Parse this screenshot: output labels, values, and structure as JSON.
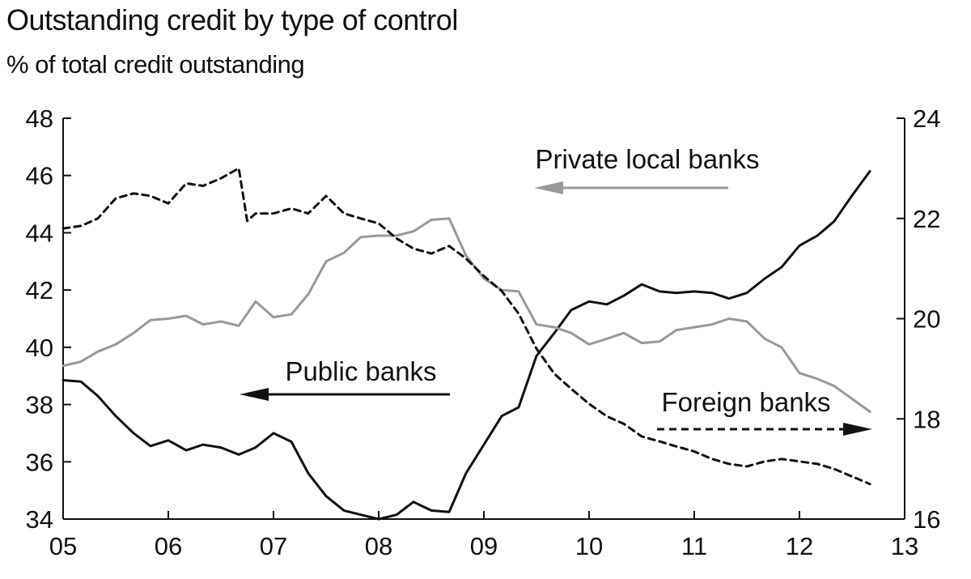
{
  "chart_data": {
    "type": "line",
    "title": "Outstanding credit by type of control",
    "subtitle": "% of total credit outstanding",
    "x_ticks": [
      "05",
      "06",
      "07",
      "08",
      "09",
      "10",
      "11",
      "12",
      "13"
    ],
    "x_range": [
      2005.0,
      2013.0
    ],
    "left_axis": {
      "ticks": [
        34,
        36,
        38,
        40,
        42,
        44,
        46,
        48
      ],
      "range": [
        34,
        48
      ]
    },
    "right_axis": {
      "ticks": [
        16,
        18,
        20,
        22,
        24
      ],
      "range": [
        16,
        24
      ]
    },
    "grid": false,
    "series": [
      {
        "name": "Public banks",
        "axis": "left",
        "style": "solid",
        "color": "#111111",
        "points": [
          [
            2005.0,
            38.85
          ],
          [
            2005.17,
            38.8
          ],
          [
            2005.33,
            38.3
          ],
          [
            2005.5,
            37.6
          ],
          [
            2005.67,
            37.0
          ],
          [
            2005.83,
            36.55
          ],
          [
            2006.0,
            36.75
          ],
          [
            2006.17,
            36.4
          ],
          [
            2006.33,
            36.6
          ],
          [
            2006.5,
            36.5
          ],
          [
            2006.67,
            36.25
          ],
          [
            2006.83,
            36.5
          ],
          [
            2007.0,
            37.0
          ],
          [
            2007.17,
            36.7
          ],
          [
            2007.33,
            35.6
          ],
          [
            2007.5,
            34.8
          ],
          [
            2007.67,
            34.3
          ],
          [
            2007.83,
            34.15
          ],
          [
            2008.0,
            34.0
          ],
          [
            2008.17,
            34.15
          ],
          [
            2008.33,
            34.6
          ],
          [
            2008.5,
            34.3
          ],
          [
            2008.67,
            34.25
          ],
          [
            2008.83,
            35.6
          ],
          [
            2009.0,
            36.6
          ],
          [
            2009.17,
            37.6
          ],
          [
            2009.33,
            37.9
          ],
          [
            2009.5,
            39.7
          ],
          [
            2009.67,
            40.5
          ],
          [
            2009.83,
            41.3
          ],
          [
            2010.0,
            41.6
          ],
          [
            2010.17,
            41.5
          ],
          [
            2010.33,
            41.8
          ],
          [
            2010.5,
            42.2
          ],
          [
            2010.67,
            41.95
          ],
          [
            2010.83,
            41.9
          ],
          [
            2011.0,
            41.95
          ],
          [
            2011.17,
            41.9
          ],
          [
            2011.33,
            41.7
          ],
          [
            2011.5,
            41.9
          ],
          [
            2011.67,
            42.4
          ],
          [
            2011.83,
            42.8
          ],
          [
            2012.0,
            43.55
          ],
          [
            2012.17,
            43.9
          ],
          [
            2012.33,
            44.4
          ],
          [
            2012.5,
            45.3
          ],
          [
            2012.67,
            46.15
          ]
        ]
      },
      {
        "name": "Private local banks",
        "axis": "left",
        "style": "solid",
        "color": "#999999",
        "points": [
          [
            2005.0,
            39.35
          ],
          [
            2005.17,
            39.5
          ],
          [
            2005.33,
            39.85
          ],
          [
            2005.5,
            40.1
          ],
          [
            2005.67,
            40.5
          ],
          [
            2005.83,
            40.95
          ],
          [
            2006.0,
            41.0
          ],
          [
            2006.17,
            41.1
          ],
          [
            2006.33,
            40.8
          ],
          [
            2006.5,
            40.9
          ],
          [
            2006.67,
            40.75
          ],
          [
            2006.83,
            41.6
          ],
          [
            2007.0,
            41.05
          ],
          [
            2007.17,
            41.15
          ],
          [
            2007.33,
            41.85
          ],
          [
            2007.5,
            43.0
          ],
          [
            2007.67,
            43.3
          ],
          [
            2007.83,
            43.85
          ],
          [
            2008.0,
            43.9
          ],
          [
            2008.17,
            43.9
          ],
          [
            2008.33,
            44.05
          ],
          [
            2008.5,
            44.45
          ],
          [
            2008.67,
            44.5
          ],
          [
            2008.83,
            43.2
          ],
          [
            2009.0,
            42.4
          ],
          [
            2009.17,
            42.0
          ],
          [
            2009.33,
            41.95
          ],
          [
            2009.5,
            40.8
          ],
          [
            2009.67,
            40.7
          ],
          [
            2009.83,
            40.5
          ],
          [
            2010.0,
            40.1
          ],
          [
            2010.17,
            40.3
          ],
          [
            2010.33,
            40.5
          ],
          [
            2010.5,
            40.15
          ],
          [
            2010.67,
            40.2
          ],
          [
            2010.83,
            40.6
          ],
          [
            2011.0,
            40.7
          ],
          [
            2011.17,
            40.8
          ],
          [
            2011.33,
            41.0
          ],
          [
            2011.5,
            40.9
          ],
          [
            2011.67,
            40.3
          ],
          [
            2011.83,
            40.0
          ],
          [
            2012.0,
            39.1
          ],
          [
            2012.17,
            38.9
          ],
          [
            2012.33,
            38.65
          ],
          [
            2012.5,
            38.2
          ],
          [
            2012.67,
            37.75
          ]
        ]
      },
      {
        "name": "Foreign banks",
        "axis": "right",
        "style": "dashed",
        "color": "#111111",
        "points": [
          [
            2005.0,
            21.8
          ],
          [
            2005.17,
            21.85
          ],
          [
            2005.33,
            22.0
          ],
          [
            2005.5,
            22.4
          ],
          [
            2005.67,
            22.5
          ],
          [
            2005.83,
            22.45
          ],
          [
            2006.0,
            22.3
          ],
          [
            2006.17,
            22.7
          ],
          [
            2006.33,
            22.65
          ],
          [
            2006.5,
            22.8
          ],
          [
            2006.67,
            23.0
          ],
          [
            2006.75,
            21.95
          ],
          [
            2006.83,
            22.1
          ],
          [
            2007.0,
            22.1
          ],
          [
            2007.17,
            22.2
          ],
          [
            2007.33,
            22.1
          ],
          [
            2007.5,
            22.45
          ],
          [
            2007.67,
            22.1
          ],
          [
            2007.83,
            22.0
          ],
          [
            2008.0,
            21.9
          ],
          [
            2008.17,
            21.6
          ],
          [
            2008.33,
            21.4
          ],
          [
            2008.5,
            21.3
          ],
          [
            2008.67,
            21.45
          ],
          [
            2008.83,
            21.2
          ],
          [
            2009.0,
            20.85
          ],
          [
            2009.17,
            20.55
          ],
          [
            2009.33,
            20.1
          ],
          [
            2009.5,
            19.4
          ],
          [
            2009.67,
            18.9
          ],
          [
            2009.83,
            18.6
          ],
          [
            2010.0,
            18.3
          ],
          [
            2010.17,
            18.05
          ],
          [
            2010.33,
            17.9
          ],
          [
            2010.5,
            17.65
          ],
          [
            2010.67,
            17.55
          ],
          [
            2010.83,
            17.45
          ],
          [
            2011.0,
            17.35
          ],
          [
            2011.17,
            17.2
          ],
          [
            2011.33,
            17.1
          ],
          [
            2011.5,
            17.05
          ],
          [
            2011.67,
            17.15
          ],
          [
            2011.83,
            17.2
          ],
          [
            2012.0,
            17.15
          ],
          [
            2012.17,
            17.1
          ],
          [
            2012.33,
            17.0
          ],
          [
            2012.5,
            16.85
          ],
          [
            2012.67,
            16.7
          ]
        ]
      }
    ],
    "annotations": [
      {
        "text": "Private local banks",
        "arrow": "left",
        "series": "Private local banks"
      },
      {
        "text": "Public banks",
        "arrow": "left",
        "series": "Public banks"
      },
      {
        "text": "Foreign banks",
        "arrow": "right",
        "series": "Foreign banks"
      }
    ]
  }
}
